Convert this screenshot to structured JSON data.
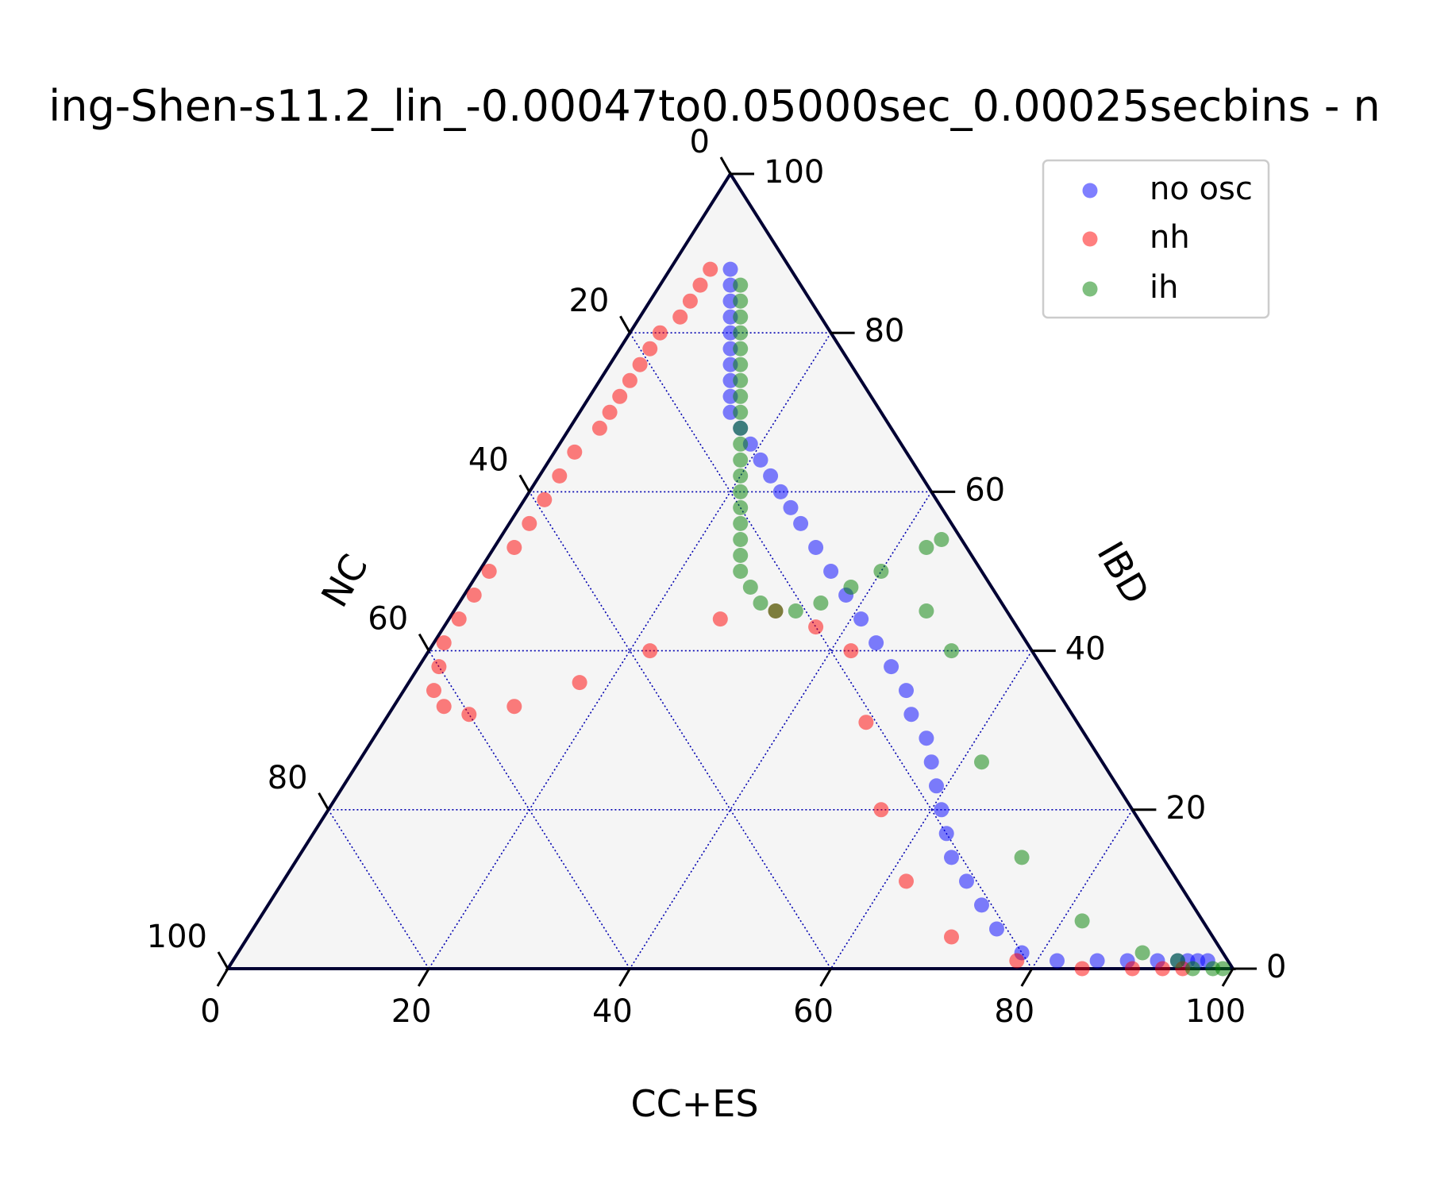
{
  "chart_data": {
    "type": "scatter",
    "subtype": "ternary",
    "title": "ing-Shen-s11.2_lin_-0.00047to0.05000sec_0.00025secbins - n",
    "axes": {
      "bottom": {
        "label": "CC+ES",
        "ticks": [
          "0",
          "20",
          "40",
          "60",
          "80",
          "100"
        ]
      },
      "right": {
        "label": "IBD",
        "ticks": [
          "0",
          "20",
          "40",
          "60",
          "80",
          "100"
        ]
      },
      "left": {
        "label": "NC",
        "ticks": [
          "0",
          "20",
          "40",
          "60",
          "80",
          "100"
        ]
      }
    },
    "grid": true,
    "legend": {
      "placement": "top-right",
      "entries": [
        "no osc",
        "nh",
        "ih"
      ]
    },
    "colors": {
      "no osc": "#0000ff",
      "nh": "#ff0000",
      "ih": "#008000",
      "frame": "#000033",
      "grid": "#0000b0",
      "background": "#f5f5f5"
    },
    "units_note": "each point is [CC+ES, IBD, NC] in percent",
    "series": [
      {
        "name": "no osc",
        "points": [
          [
            6,
            88,
            6
          ],
          [
            7,
            86,
            7
          ],
          [
            8,
            84,
            8
          ],
          [
            9,
            82,
            9
          ],
          [
            10,
            80,
            10
          ],
          [
            11,
            78,
            11
          ],
          [
            12,
            76,
            12
          ],
          [
            13,
            74,
            13
          ],
          [
            14,
            72,
            14
          ],
          [
            15,
            70,
            15
          ],
          [
            17,
            68,
            15
          ],
          [
            19,
            66,
            15
          ],
          [
            21,
            64,
            15
          ],
          [
            23,
            62,
            15
          ],
          [
            25,
            60,
            15
          ],
          [
            27,
            58,
            15
          ],
          [
            29,
            56,
            15
          ],
          [
            32,
            53,
            15
          ],
          [
            35,
            50,
            15
          ],
          [
            38,
            47,
            15
          ],
          [
            41,
            44,
            15
          ],
          [
            44,
            41,
            15
          ],
          [
            47,
            38,
            15
          ],
          [
            50,
            35,
            15
          ],
          [
            52,
            32,
            16
          ],
          [
            55,
            29,
            16
          ],
          [
            57,
            26,
            17
          ],
          [
            59,
            23,
            18
          ],
          [
            61,
            20,
            19
          ],
          [
            63,
            17,
            20
          ],
          [
            65,
            14,
            21
          ],
          [
            68,
            11,
            21
          ],
          [
            71,
            8,
            21
          ],
          [
            74,
            5,
            21
          ],
          [
            78,
            2,
            20
          ],
          [
            82,
            1,
            17
          ],
          [
            86,
            1,
            13
          ],
          [
            89,
            1,
            10
          ],
          [
            92,
            1,
            7
          ],
          [
            94,
            1,
            5
          ],
          [
            95,
            1,
            4
          ],
          [
            96,
            1,
            3
          ],
          [
            97,
            1,
            2
          ]
        ]
      },
      {
        "name": "nh",
        "points": [
          [
            4,
            88,
            8
          ],
          [
            4,
            86,
            10
          ],
          [
            4,
            84,
            12
          ],
          [
            4,
            82,
            14
          ],
          [
            3,
            80,
            17
          ],
          [
            3,
            78,
            19
          ],
          [
            3,
            76,
            21
          ],
          [
            3,
            74,
            23
          ],
          [
            3,
            72,
            25
          ],
          [
            3,
            70,
            27
          ],
          [
            3,
            68,
            29
          ],
          [
            2,
            65,
            33
          ],
          [
            2,
            62,
            36
          ],
          [
            2,
            59,
            39
          ],
          [
            2,
            56,
            42
          ],
          [
            2,
            53,
            45
          ],
          [
            1,
            50,
            49
          ],
          [
            1,
            47,
            52
          ],
          [
            1,
            44,
            55
          ],
          [
            1,
            41,
            58
          ],
          [
            2,
            38,
            60
          ],
          [
            3,
            35,
            62
          ],
          [
            5,
            33,
            62
          ],
          [
            8,
            32,
            60
          ],
          [
            12,
            33,
            55
          ],
          [
            17,
            36,
            47
          ],
          [
            22,
            40,
            38
          ],
          [
            27,
            44,
            29
          ],
          [
            32,
            45,
            23
          ],
          [
            37,
            43,
            20
          ],
          [
            42,
            40,
            18
          ],
          [
            48,
            31,
            21
          ],
          [
            55,
            20,
            25
          ],
          [
            62,
            11,
            27
          ],
          [
            70,
            4,
            26
          ],
          [
            78,
            1,
            21
          ],
          [
            85,
            0,
            15
          ],
          [
            90,
            0,
            10
          ],
          [
            93,
            0,
            7
          ],
          [
            95,
            0,
            5
          ]
        ]
      },
      {
        "name": "ih",
        "points": [
          [
            8,
            86,
            6
          ],
          [
            9,
            84,
            7
          ],
          [
            10,
            82,
            8
          ],
          [
            11,
            80,
            9
          ],
          [
            12,
            78,
            10
          ],
          [
            13,
            76,
            11
          ],
          [
            14,
            74,
            12
          ],
          [
            15,
            72,
            13
          ],
          [
            16,
            70,
            14
          ],
          [
            17,
            68,
            15
          ],
          [
            18,
            66,
            16
          ],
          [
            19,
            64,
            17
          ],
          [
            20,
            62,
            18
          ],
          [
            21,
            60,
            19
          ],
          [
            22,
            58,
            20
          ],
          [
            23,
            56,
            21
          ],
          [
            24,
            54,
            22
          ],
          [
            25,
            52,
            23
          ],
          [
            26,
            50,
            24
          ],
          [
            28,
            48,
            24
          ],
          [
            30,
            46,
            24
          ],
          [
            32,
            45,
            23
          ],
          [
            34,
            45,
            21
          ],
          [
            36,
            46,
            18
          ],
          [
            38,
            48,
            14
          ],
          [
            40,
            50,
            10
          ],
          [
            43,
            53,
            4
          ],
          [
            44,
            54,
            2
          ],
          [
            47,
            45,
            8
          ],
          [
            52,
            40,
            8
          ],
          [
            62,
            26,
            12
          ],
          [
            72,
            14,
            14
          ],
          [
            82,
            6,
            12
          ],
          [
            90,
            2,
            8
          ],
          [
            94,
            1,
            5
          ],
          [
            96,
            0,
            4
          ],
          [
            98,
            0,
            2
          ],
          [
            99,
            0,
            1
          ]
        ]
      }
    ]
  }
}
